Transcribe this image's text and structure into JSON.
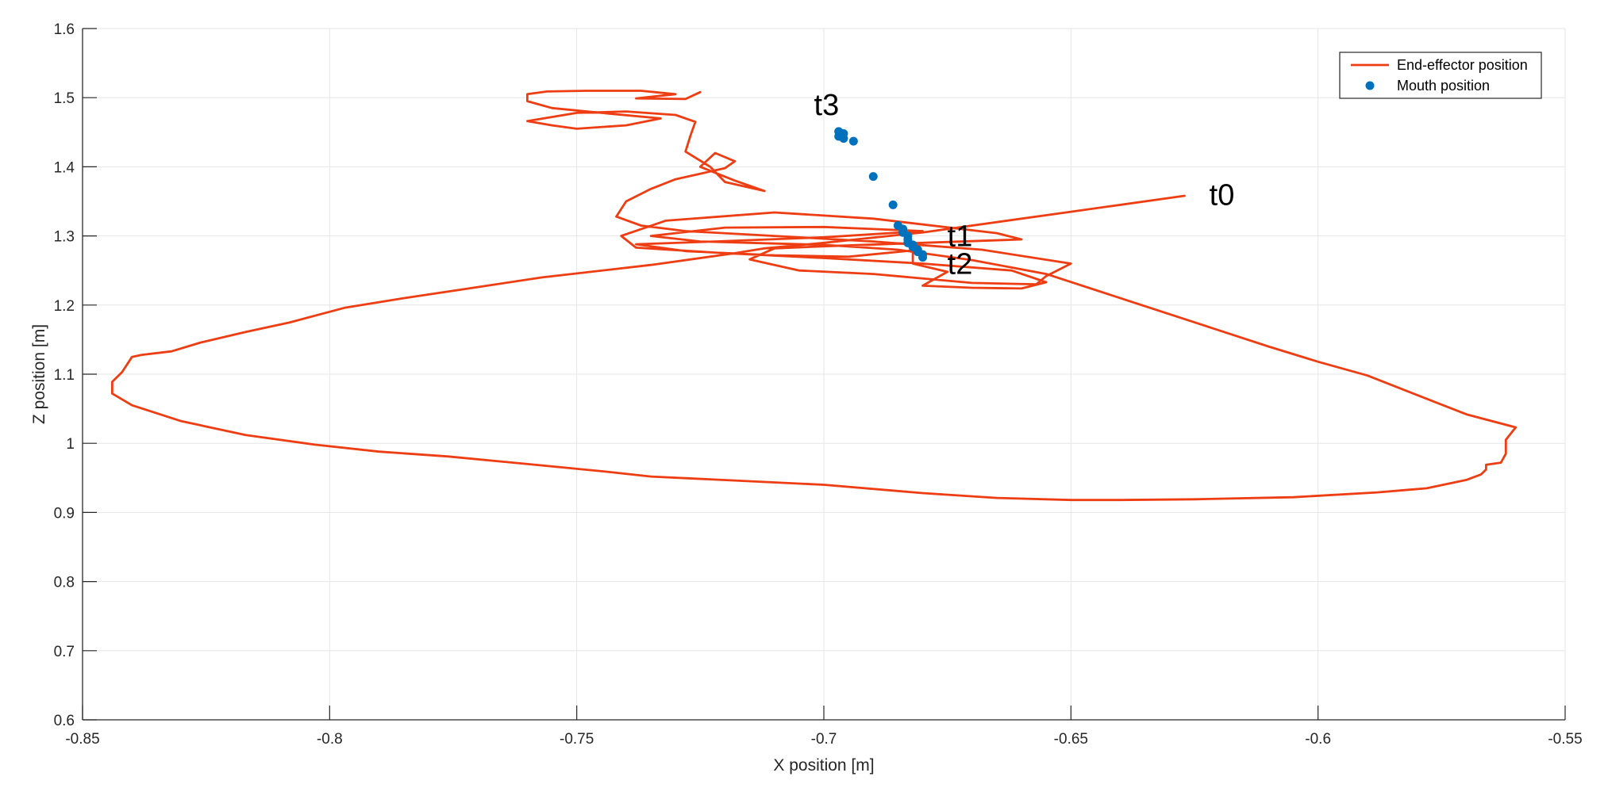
{
  "chart_data": {
    "type": "line",
    "title": "",
    "xlabel": "X position [m]",
    "ylabel": "Z position [m]",
    "xlim": [
      -0.85,
      -0.55
    ],
    "ylim": [
      0.6,
      1.6
    ],
    "x_ticks": [
      -0.85,
      -0.8,
      -0.75,
      -0.7,
      -0.65,
      -0.6,
      -0.55
    ],
    "x_tick_labels": [
      "-0.85",
      "-0.8",
      "-0.75",
      "-0.7",
      "-0.65",
      "-0.6",
      "-0.55"
    ],
    "y_ticks": [
      0.6,
      0.7,
      0.8,
      0.9,
      1.0,
      1.1,
      1.2,
      1.3,
      1.4,
      1.5,
      1.6
    ],
    "y_tick_labels": [
      "0.6",
      "0.7",
      "0.8",
      "0.9",
      "1",
      "1.1",
      "1.2",
      "1.3",
      "1.4",
      "1.5",
      "1.6"
    ],
    "grid": true,
    "legend_position": "top-right",
    "series": [
      {
        "name": "End-effector position",
        "style": "line",
        "color": "#ee3d12",
        "points": [
          [
            -0.627,
            1.358
          ],
          [
            -0.65,
            1.335
          ],
          [
            -0.68,
            1.305
          ],
          [
            -0.7,
            1.29
          ],
          [
            -0.712,
            1.282
          ],
          [
            -0.718,
            1.275
          ],
          [
            -0.735,
            1.258
          ],
          [
            -0.757,
            1.24
          ],
          [
            -0.77,
            1.226
          ],
          [
            -0.785,
            1.21
          ],
          [
            -0.797,
            1.196
          ],
          [
            -0.808,
            1.175
          ],
          [
            -0.817,
            1.161
          ],
          [
            -0.826,
            1.146
          ],
          [
            -0.832,
            1.133
          ],
          [
            -0.838,
            1.128
          ],
          [
            -0.84,
            1.125
          ],
          [
            -0.842,
            1.103
          ],
          [
            -0.844,
            1.089
          ],
          [
            -0.844,
            1.072
          ],
          [
            -0.84,
            1.055
          ],
          [
            -0.83,
            1.032
          ],
          [
            -0.817,
            1.012
          ],
          [
            -0.803,
            0.998
          ],
          [
            -0.79,
            0.988
          ],
          [
            -0.776,
            0.981
          ],
          [
            -0.757,
            0.968
          ],
          [
            -0.744,
            0.959
          ],
          [
            -0.735,
            0.952
          ],
          [
            -0.7,
            0.94
          ],
          [
            -0.68,
            0.928
          ],
          [
            -0.665,
            0.921
          ],
          [
            -0.65,
            0.918
          ],
          [
            -0.64,
            0.918
          ],
          [
            -0.625,
            0.919
          ],
          [
            -0.605,
            0.922
          ],
          [
            -0.588,
            0.929
          ],
          [
            -0.578,
            0.935
          ],
          [
            -0.57,
            0.947
          ],
          [
            -0.567,
            0.955
          ],
          [
            -0.566,
            0.962
          ],
          [
            -0.566,
            0.969
          ],
          [
            -0.563,
            0.972
          ],
          [
            -0.562,
            0.985
          ],
          [
            -0.562,
            1.005
          ],
          [
            -0.56,
            1.023
          ],
          [
            -0.57,
            1.042
          ],
          [
            -0.58,
            1.07
          ],
          [
            -0.59,
            1.098
          ],
          [
            -0.6,
            1.118
          ],
          [
            -0.61,
            1.14
          ],
          [
            -0.625,
            1.175
          ],
          [
            -0.64,
            1.21
          ],
          [
            -0.655,
            1.245
          ],
          [
            -0.67,
            1.265
          ],
          [
            -0.685,
            1.28
          ],
          [
            -0.7,
            1.287
          ],
          [
            -0.715,
            1.29
          ],
          [
            -0.725,
            1.292
          ],
          [
            -0.735,
            1.3
          ],
          [
            -0.72,
            1.312
          ],
          [
            -0.7,
            1.313
          ],
          [
            -0.69,
            1.31
          ],
          [
            -0.68,
            1.307
          ],
          [
            -0.7,
            1.298
          ],
          [
            -0.722,
            1.292
          ],
          [
            -0.738,
            1.288
          ],
          [
            -0.728,
            1.278
          ],
          [
            -0.71,
            1.272
          ],
          [
            -0.695,
            1.27
          ],
          [
            -0.682,
            1.279
          ],
          [
            -0.682,
            1.26
          ],
          [
            -0.675,
            1.248
          ],
          [
            -0.68,
            1.228
          ],
          [
            -0.67,
            1.225
          ],
          [
            -0.66,
            1.224
          ],
          [
            -0.655,
            1.233
          ],
          [
            -0.662,
            1.25
          ],
          [
            -0.68,
            1.26
          ],
          [
            -0.7,
            1.268
          ],
          [
            -0.72,
            1.275
          ],
          [
            -0.738,
            1.283
          ],
          [
            -0.741,
            1.3
          ],
          [
            -0.732,
            1.322
          ],
          [
            -0.71,
            1.334
          ],
          [
            -0.69,
            1.325
          ],
          [
            -0.665,
            1.304
          ],
          [
            -0.66,
            1.295
          ],
          [
            -0.68,
            1.29
          ],
          [
            -0.7,
            1.285
          ],
          [
            -0.71,
            1.282
          ],
          [
            -0.715,
            1.266
          ],
          [
            -0.705,
            1.25
          ],
          [
            -0.69,
            1.245
          ],
          [
            -0.67,
            1.232
          ],
          [
            -0.657,
            1.23
          ],
          [
            -0.655,
            1.242
          ],
          [
            -0.65,
            1.26
          ],
          [
            -0.668,
            1.28
          ],
          [
            -0.69,
            1.292
          ],
          [
            -0.71,
            1.3
          ],
          [
            -0.728,
            1.307
          ],
          [
            -0.737,
            1.315
          ],
          [
            -0.742,
            1.328
          ],
          [
            -0.74,
            1.35
          ],
          [
            -0.735,
            1.368
          ],
          [
            -0.73,
            1.382
          ],
          [
            -0.72,
            1.398
          ],
          [
            -0.718,
            1.408
          ],
          [
            -0.722,
            1.42
          ],
          [
            -0.725,
            1.4
          ],
          [
            -0.718,
            1.38
          ],
          [
            -0.712,
            1.365
          ],
          [
            -0.72,
            1.378
          ],
          [
            -0.723,
            1.4
          ],
          [
            -0.728,
            1.422
          ],
          [
            -0.727,
            1.445
          ],
          [
            -0.726,
            1.465
          ],
          [
            -0.73,
            1.475
          ],
          [
            -0.74,
            1.48
          ],
          [
            -0.75,
            1.478
          ],
          [
            -0.76,
            1.466
          ],
          [
            -0.755,
            1.46
          ],
          [
            -0.75,
            1.455
          ],
          [
            -0.74,
            1.46
          ],
          [
            -0.733,
            1.47
          ],
          [
            -0.745,
            1.478
          ],
          [
            -0.755,
            1.485
          ],
          [
            -0.76,
            1.495
          ],
          [
            -0.76,
            1.505
          ],
          [
            -0.756,
            1.509
          ],
          [
            -0.748,
            1.51
          ],
          [
            -0.737,
            1.51
          ],
          [
            -0.73,
            1.505
          ],
          [
            -0.738,
            1.499
          ],
          [
            -0.728,
            1.498
          ],
          [
            -0.725,
            1.508
          ]
        ]
      },
      {
        "name": "Mouth position",
        "style": "scatter",
        "color": "#0072bd",
        "points": [
          [
            -0.697,
            1.451
          ],
          [
            -0.696,
            1.448
          ],
          [
            -0.697,
            1.444
          ],
          [
            -0.696,
            1.441
          ],
          [
            -0.694,
            1.437
          ],
          [
            -0.69,
            1.386
          ],
          [
            -0.686,
            1.345
          ],
          [
            -0.685,
            1.315
          ],
          [
            -0.684,
            1.31
          ],
          [
            -0.684,
            1.305
          ],
          [
            -0.683,
            1.3
          ],
          [
            -0.683,
            1.295
          ],
          [
            -0.683,
            1.29
          ],
          [
            -0.682,
            1.287
          ],
          [
            -0.682,
            1.284
          ],
          [
            -0.681,
            1.28
          ],
          [
            -0.681,
            1.277
          ],
          [
            -0.68,
            1.273
          ],
          [
            -0.68,
            1.269
          ]
        ]
      }
    ],
    "annotations": [
      {
        "text": "t0",
        "x": -0.622,
        "y": 1.36
      },
      {
        "text": "t1",
        "x": -0.675,
        "y": 1.3
      },
      {
        "text": "t2",
        "x": -0.675,
        "y": 1.26
      },
      {
        "text": "t3",
        "x": -0.702,
        "y": 1.49
      }
    ]
  }
}
